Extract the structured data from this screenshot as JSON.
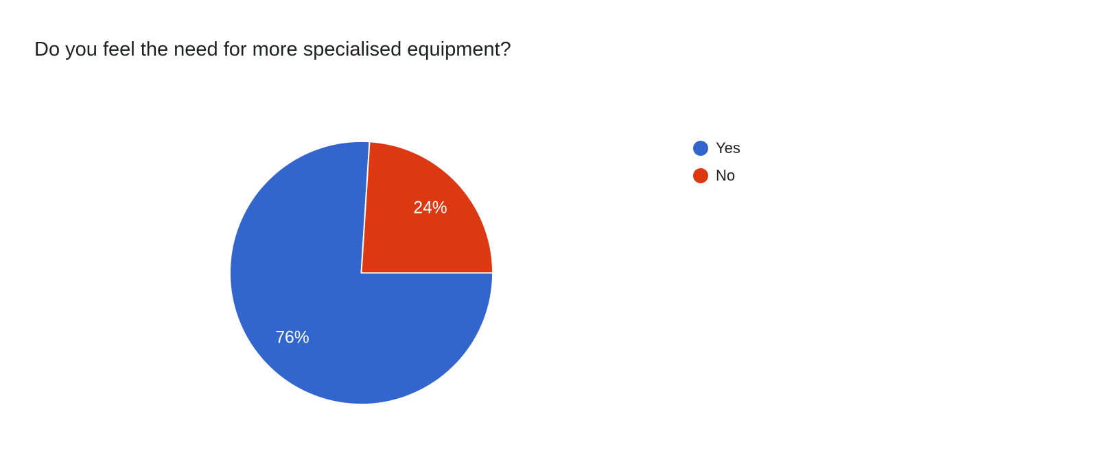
{
  "chart_data": {
    "type": "pie",
    "title": "Do you feel the need for more specialised equipment?",
    "categories": [
      "Yes",
      "No"
    ],
    "values": [
      76,
      24
    ],
    "slice_labels": [
      "76%",
      "24%"
    ],
    "colors": [
      "#3366cc",
      "#dc3912"
    ],
    "slice_label_color": "#ffffff",
    "legend_position": "right",
    "start_angle_deg": 90,
    "background": "#ffffff"
  }
}
